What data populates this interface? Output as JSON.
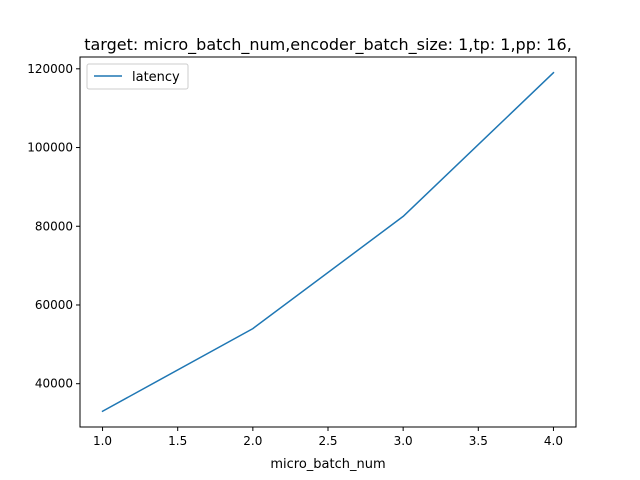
{
  "chart_data": {
    "type": "line",
    "title": "target: micro_batch_num,encoder_batch_size: 1,tp: 1,pp: 16,",
    "xlabel": "micro_batch_num",
    "ylabel": "",
    "x": [
      1.0,
      2.0,
      3.0,
      4.0
    ],
    "series": [
      {
        "name": "latency",
        "values": [
          33000,
          54000,
          82500,
          119000
        ],
        "color": "#1f77b4"
      }
    ],
    "xlim": [
      0.85,
      4.15
    ],
    "ylim": [
      29000,
      123000
    ],
    "xticks": [
      1.0,
      1.5,
      2.0,
      2.5,
      3.0,
      3.5,
      4.0
    ],
    "xtick_labels": [
      "1.0",
      "1.5",
      "2.0",
      "2.5",
      "3.0",
      "3.5",
      "4.0"
    ],
    "yticks": [
      40000,
      60000,
      80000,
      100000,
      120000
    ],
    "ytick_labels": [
      "40000",
      "60000",
      "80000",
      "100000",
      "120000"
    ],
    "grid": false,
    "legend": {
      "position": "top-left"
    }
  }
}
